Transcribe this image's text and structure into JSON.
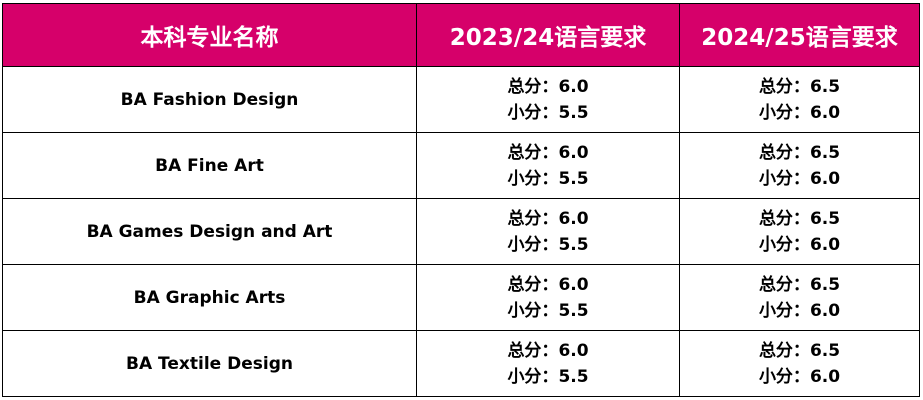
{
  "table": {
    "headers": [
      "本科专业名称",
      "2023/24语言要求",
      "2024/25语言要求"
    ],
    "overall_label": "总分：",
    "sub_label": "小分：",
    "rows": [
      {
        "program": "BA Fashion Design",
        "y2023_overall": "6.0",
        "y2023_sub": "5.5",
        "y2024_overall": "6.5",
        "y2024_sub": "6.0"
      },
      {
        "program": "BA Fine Art",
        "y2023_overall": "6.0",
        "y2023_sub": "5.5",
        "y2024_overall": "6.5",
        "y2024_sub": "6.0"
      },
      {
        "program": "BA Games Design and Art",
        "y2023_overall": "6.0",
        "y2023_sub": "5.5",
        "y2024_overall": "6.5",
        "y2024_sub": "6.0"
      },
      {
        "program": "BA Graphic Arts",
        "y2023_overall": "6.0",
        "y2023_sub": "5.5",
        "y2024_overall": "6.5",
        "y2024_sub": "6.0"
      },
      {
        "program": "BA Textile Design",
        "y2023_overall": "6.0",
        "y2023_sub": "5.5",
        "y2024_overall": "6.5",
        "y2024_sub": "6.0"
      }
    ]
  },
  "colors": {
    "header_bg": "#d6006a",
    "header_text": "#ffffff",
    "border": "#000000"
  }
}
